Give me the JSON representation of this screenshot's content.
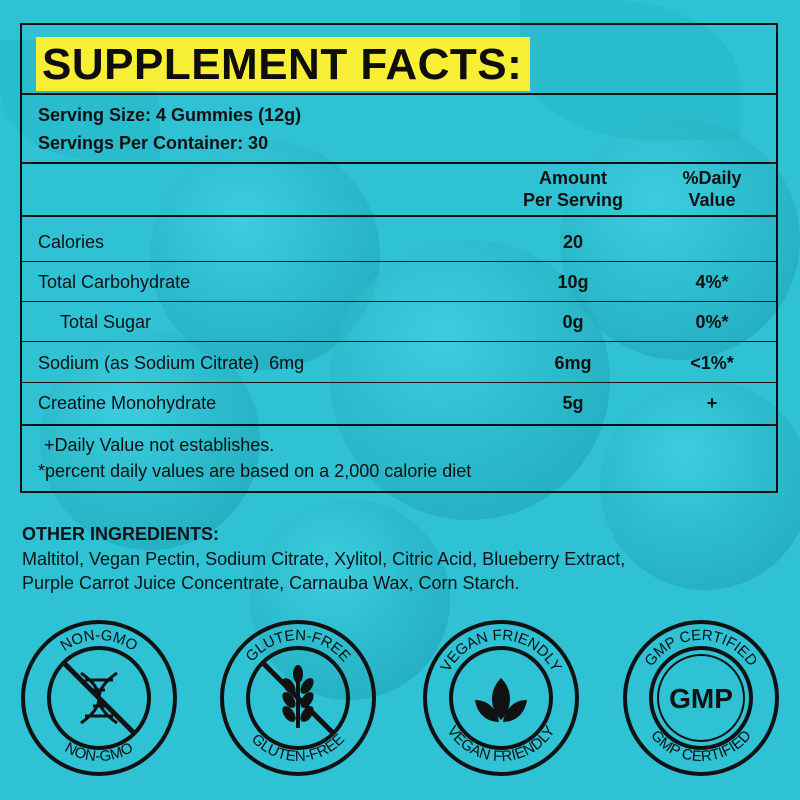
{
  "title": "SUPPLEMENT FACTS:",
  "serving_size": "Serving Size: 4 Gummies (12g)",
  "servings_per_container": "Servings Per Container: 30",
  "columns": {
    "amount_line1": "Amount",
    "amount_line2": "Per Serving",
    "dv_line1": "%Daily",
    "dv_line2": "Value"
  },
  "rows": [
    {
      "name": "Calories",
      "amount": "20",
      "dv": ""
    },
    {
      "name": "Total Carbohydrate",
      "amount": "10g",
      "dv": "4%*"
    },
    {
      "name": "Total Sugar",
      "amount": "0g",
      "dv": "0%*"
    },
    {
      "name": "Sodium (as Sodium Citrate)  6mg",
      "amount": "6mg",
      "dv": "<1%*"
    },
    {
      "name": "Creatine Monohydrate",
      "amount": "5g",
      "dv": "+"
    }
  ],
  "footnote_plus": "+Daily Value not establishes.",
  "footnote_star": "*percent daily values are based on a 2,000 calorie diet",
  "other_ingredients": {
    "heading": "OTHER INGREDIENTS:",
    "line1": "Maltitol, Vegan Pectin, Sodium Citrate, Xylitol, Citric Acid, Blueberry Extract,",
    "line2": "Purple Carrot Juice Concentrate, Carnauba Wax, Corn Starch."
  },
  "badges": [
    {
      "top": "NON-GMO",
      "bottom": "NON-GMO",
      "icon": "dna-crossed-icon"
    },
    {
      "top": "GLUTEN-FREE",
      "bottom": "GLUTEN-FREE",
      "icon": "wheat-crossed-icon"
    },
    {
      "top": "VEGAN FRIENDLY",
      "bottom": "VEGAN FRIENDLY",
      "icon": "leaves-icon"
    },
    {
      "top": "GMP CERTIFIED",
      "bottom": "GMP CERTIFIED",
      "center": "GMP",
      "icon": "gmp-seal-icon"
    }
  ],
  "colors": {
    "background": "#2ec2d4",
    "title_highlight": "#f7ef35",
    "ink": "#111111"
  }
}
